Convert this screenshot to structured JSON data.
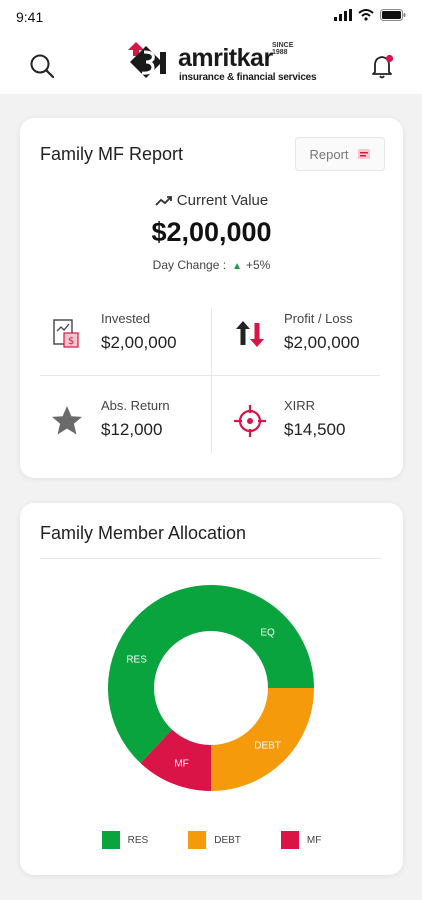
{
  "status_bar": {
    "time": "9:41"
  },
  "header": {
    "brand": "amritkar",
    "since": "SINCE 1988",
    "tagline": "insurance & financial services"
  },
  "report_card": {
    "title": "Family MF Report",
    "report_button": "Report",
    "current_value_label": "Current Value",
    "current_value": "$2,00,000",
    "day_change_label": "Day Change :",
    "day_change_value": "+5%",
    "stats": [
      {
        "label": "Invested",
        "value": "$2,00,000",
        "icon": "invested-icon"
      },
      {
        "label": "Profit / Loss",
        "value": "$2,00,000",
        "icon": "profit-loss-icon"
      },
      {
        "label": "Abs. Return",
        "value": "$12,000",
        "icon": "star-icon"
      },
      {
        "label": "XIRR",
        "value": "$14,500",
        "icon": "target-icon"
      }
    ]
  },
  "allocation_card": {
    "title": "Family Member Allocation"
  },
  "chart_data": {
    "type": "pie",
    "segments": [
      {
        "label": "EQ",
        "value": 25,
        "color": "#0aa43f"
      },
      {
        "label": "DEBT",
        "value": 25,
        "color": "#f59a0b"
      },
      {
        "label": "MF",
        "value": 12,
        "color": "#da1446"
      },
      {
        "label": "RES",
        "value": 38,
        "color": "#0aa43f"
      }
    ],
    "legend": [
      {
        "label": "RES",
        "color": "#0aa43f"
      },
      {
        "label": "DEBT",
        "color": "#f59a0b"
      },
      {
        "label": "MF",
        "color": "#da1446"
      }
    ],
    "legend_position": "bottom"
  }
}
